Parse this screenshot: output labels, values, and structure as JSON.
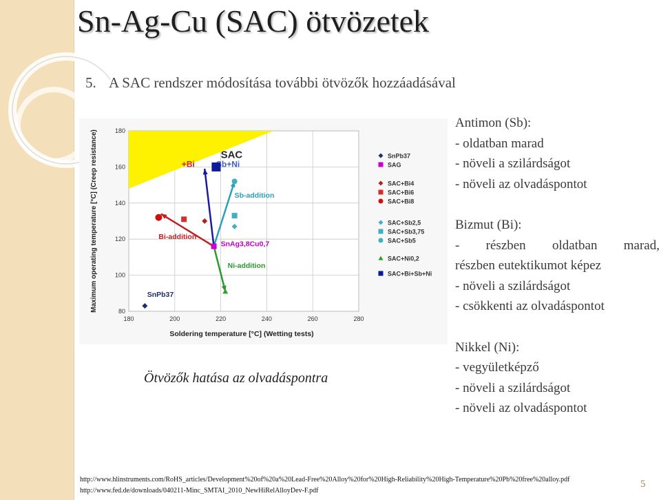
{
  "title": "Sn-Ag-Cu (SAC) ötvözetek",
  "subtitle": {
    "number": "5.",
    "text": "A SAC rendszer módosítása további ötvözők hozzáadásával"
  },
  "chart_data": {
    "type": "scatter",
    "xlabel": "Soldering temperature [°C] (Wetting tests)",
    "ylabel": "Maximum operating temperature [°C] (Creep resistance)",
    "xlim": [
      180,
      280
    ],
    "ylim": [
      80,
      180
    ],
    "x_ticks": [
      "180",
      "200",
      "220",
      "240",
      "260",
      "280"
    ],
    "y_ticks": [
      "80",
      "100",
      "120",
      "140",
      "160",
      "180"
    ],
    "grid": true,
    "region": {
      "label": "SAC",
      "sublabels": [
        "+Bi",
        "Sb+Ni"
      ],
      "color": "#fef200"
    },
    "series": [
      {
        "name": "SnPb37",
        "marker": "diamond",
        "color": "#1f2d6b",
        "points": [
          [
            187,
            83
          ]
        ]
      },
      {
        "name": "SAG",
        "marker": "square",
        "color": "#cc00cc",
        "points": [
          [
            217,
            116
          ]
        ]
      },
      {
        "name": "SAC+Bi4",
        "marker": "diamond",
        "color": "#b02020",
        "points": [
          [
            213,
            130
          ]
        ]
      },
      {
        "name": "SAC+Bi6",
        "marker": "square",
        "color": "#d03030",
        "points": [
          [
            204,
            131
          ]
        ]
      },
      {
        "name": "SAC+Bi8",
        "marker": "circle",
        "color": "#d01010",
        "points": [
          [
            193,
            132
          ]
        ]
      },
      {
        "name": "SAC+Sb2,5",
        "marker": "diamond",
        "color": "#40b0c0",
        "points": [
          [
            226,
            127
          ]
        ]
      },
      {
        "name": "SAC+Sb3,75",
        "marker": "square",
        "color": "#40b0c0",
        "points": [
          [
            226,
            133
          ]
        ]
      },
      {
        "name": "SAC+Sb5",
        "marker": "circle",
        "color": "#40b0c0",
        "points": [
          [
            226,
            152
          ]
        ]
      },
      {
        "name": "SAC+Ni0,2",
        "marker": "triangle",
        "color": "#30a030",
        "points": [
          [
            222,
            91
          ]
        ]
      },
      {
        "name": "SAC+Bi+Sb+Ni",
        "marker": "square",
        "color": "#0a1a9a",
        "points": [
          [
            218,
            160
          ]
        ]
      }
    ],
    "annotations": [
      {
        "text": "SnPb37",
        "color": "#1f2d6b"
      },
      {
        "text": "Bi-addition",
        "color": "#c02020"
      },
      {
        "text": "SnAg3,8Cu0,7",
        "color": "#c000c0"
      },
      {
        "text": "Sb-addition",
        "color": "#2aa0b8"
      },
      {
        "text": "Ni-addition",
        "color": "#2a9a2a"
      }
    ],
    "arrows": [
      {
        "from": [
          217,
          116
        ],
        "to": [
          194,
          134
        ],
        "color": "#c02020"
      },
      {
        "from": [
          217,
          116
        ],
        "to": [
          226,
          152
        ],
        "color": "#2aa0b8"
      },
      {
        "from": [
          217,
          116
        ],
        "to": [
          222,
          91
        ],
        "color": "#2a9a2a"
      },
      {
        "from": [
          217,
          116
        ],
        "to": [
          213,
          159
        ],
        "color": "#1a1aa0"
      }
    ]
  },
  "caption": "Ötvözők hatása az olvadáspontra",
  "blocks": [
    {
      "name": "antimon",
      "lines": [
        "Antimon (Sb):",
        "- oldatban marad",
        "- növeli a szilárdságot",
        "- növeli az olvadáspontot"
      ]
    },
    {
      "name": "bizmut",
      "lines": [
        "Bizmut (Bi):",
        "- részben oldatban marad,",
        "részben eutektikumot képez",
        "- növeli a szilárdságot",
        "- csökkenti az olvadáspontot"
      ]
    },
    {
      "name": "nikkel",
      "lines": [
        "Nikkel (Ni):",
        "- vegyületképző",
        "- növeli a szilárdságot",
        "- növeli az olvadáspontot"
      ]
    }
  ],
  "links": [
    "http://www.hlinstruments.com/RoHS_articles/Development%20of%20a%20Lead-Free%20Alloy%20for%20High-Reliability%20High-Temperature%20Pb%20free%20alloy.pdf",
    "http://www.fed.de/downloads/040211-Minc_SMTAI_2010_NewHiRelAlloyDev-F.pdf"
  ],
  "page_number": "5",
  "colors": {
    "accent": "#f3e0bb",
    "title_shadow": "#b8b8b8",
    "chart_region": "#fef200"
  }
}
